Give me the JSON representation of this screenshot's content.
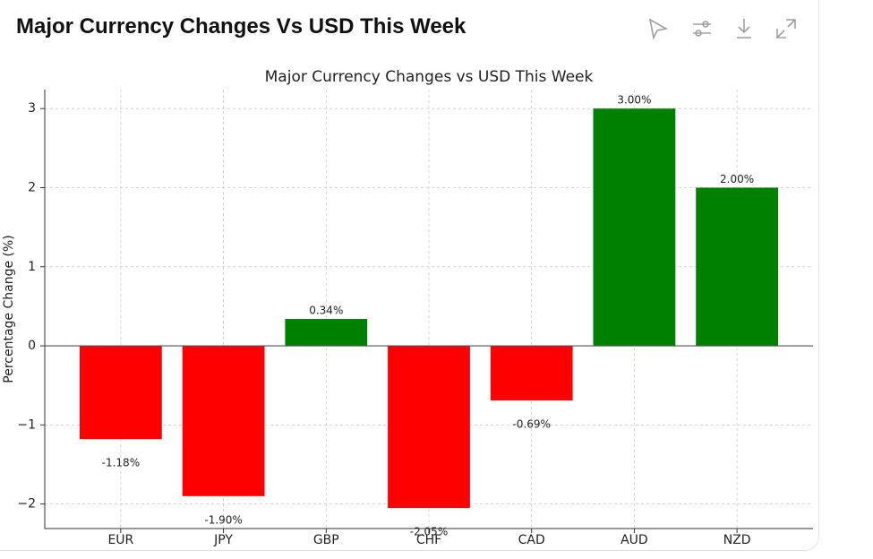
{
  "header": {
    "title": "Major Currency Changes Vs USD This Week"
  },
  "chart_data": {
    "type": "bar",
    "title": "Major Currency Changes vs USD This Week",
    "y_label": "Percentage Change (%)",
    "categories": [
      "EUR",
      "JPY",
      "GBP",
      "CHF",
      "CAD",
      "AUD",
      "NZD"
    ],
    "values": [
      -1.18,
      -1.9,
      0.34,
      -2.05,
      -0.69,
      3.0,
      2.0
    ],
    "value_labels": [
      "-1.18%",
      "-1.90%",
      "0.34%",
      "-2.05%",
      "-0.69%",
      "3.00%",
      "2.00%"
    ],
    "colors": [
      "red",
      "red",
      "green",
      "red",
      "red",
      "green",
      "green"
    ],
    "ylim": [
      -2.31,
      3.24
    ],
    "yticks": [
      {
        "value": -2,
        "label": "−2"
      },
      {
        "value": -1,
        "label": "−1"
      },
      0,
      1,
      2,
      3
    ],
    "grid": true
  }
}
